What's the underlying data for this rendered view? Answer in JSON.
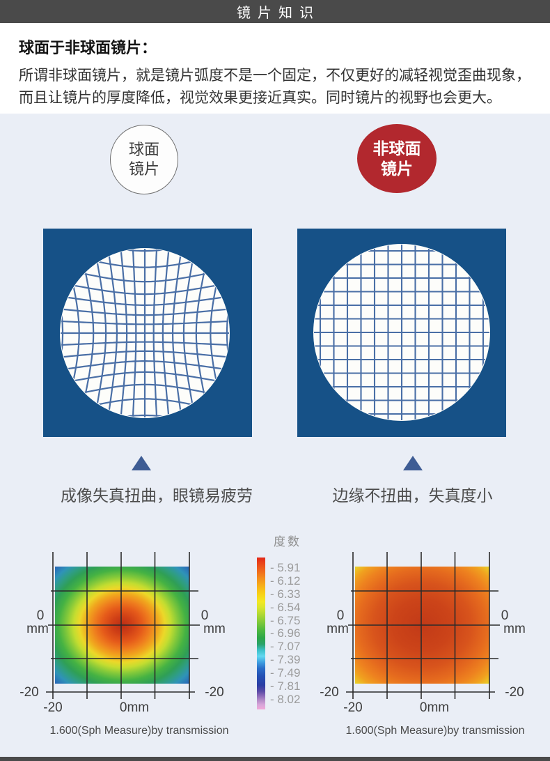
{
  "header": {
    "title": "镜片知识",
    "bg_color": "#4a4a4a",
    "text_color": "#ffffff"
  },
  "intro": {
    "heading": "球面于非球面镜片：",
    "line1": "所谓非球面镜片，就是镜片弧度不是一个固定，不仅更好的减轻视觉歪曲现象，",
    "line2": "而且让镜片的厚度降低，视觉效果更接近真实。同时镜片的视野也会更大。"
  },
  "badges": {
    "spherical": {
      "line1": "球面",
      "line2": "镜片"
    },
    "aspherical": {
      "line1": "非球面",
      "line2": "镜片",
      "bg_color": "#b2282e"
    }
  },
  "demo": {
    "panel_color": "#165187",
    "grid_line_color": "#4a6fa6",
    "left_caption": "成像失真扭曲，眼镜易疲劳",
    "right_caption": "边缘不扭曲，失真度小"
  },
  "plots": {
    "axis": {
      "zero": "0",
      "unit": "mm",
      "neg20": "-20",
      "zero_mm": "0mm"
    },
    "left_caption": "1.600(Sph Measure)by transmission",
    "right_caption": "1.600(Sph Measure)by transmission"
  },
  "legend": {
    "title": "度数",
    "labels": [
      "- 5.91",
      "- 6.12",
      "- 6.33",
      "- 6.54",
      "- 6.75",
      "- 6.96",
      "- 7.07",
      "- 7.39",
      "- 7.49",
      "- 7.81",
      "- 8.02"
    ]
  },
  "chart_data": [
    {
      "type": "heatmap",
      "name": "spherical-lens-power-map",
      "caption": "1.600(Sph Measure)by transmission",
      "x_range_mm": [
        -20,
        20
      ],
      "y_range_mm": [
        -20,
        20
      ],
      "x_tick_labels": [
        "-20",
        "0mm"
      ],
      "y_tick_labels_left": [
        "0",
        "mm",
        "-20"
      ],
      "y_tick_labels_right": [
        "0",
        "mm",
        "-20"
      ],
      "value_unit": "diopter (度数)",
      "value_scale": [
        -5.91,
        -6.12,
        -6.33,
        -6.54,
        -6.75,
        -6.96,
        -7.07,
        -7.39,
        -7.49,
        -7.81,
        -8.02
      ],
      "pattern": "radial: red center ~-5.91 worsening to blue corners ~-7.5",
      "x": [
        -20,
        -10,
        0,
        10,
        20
      ],
      "y": [
        20,
        10,
        0,
        -10,
        -20
      ],
      "values": [
        [
          -7.5,
          -7.0,
          -6.8,
          -7.0,
          -7.5
        ],
        [
          -7.0,
          -6.4,
          -6.1,
          -6.4,
          -7.0
        ],
        [
          -6.8,
          -6.1,
          -5.91,
          -6.1,
          -6.8
        ],
        [
          -7.0,
          -6.4,
          -6.1,
          -6.4,
          -7.0
        ],
        [
          -7.5,
          -7.0,
          -6.8,
          -7.0,
          -7.5
        ]
      ],
      "grid": true,
      "legend_position": "right-of-plot (shared, titled 度数)"
    },
    {
      "type": "heatmap",
      "name": "aspherical-lens-power-map",
      "caption": "1.600(Sph Measure)by transmission",
      "x_range_mm": [
        -20,
        20
      ],
      "y_range_mm": [
        -20,
        20
      ],
      "x_tick_labels": [
        "-20",
        "0mm"
      ],
      "y_tick_labels_left": [
        "0",
        "mm",
        "-20"
      ],
      "y_tick_labels_right": [
        "0",
        "mm",
        "-20"
      ],
      "value_unit": "diopter (度数)",
      "value_scale": [
        -5.91,
        -6.12,
        -6.33,
        -6.54,
        -6.75,
        -6.96,
        -7.07,
        -7.39,
        -7.49,
        -7.81,
        -8.02
      ],
      "pattern": "nearly uniform: red-orange center ~-6.0, green-yellow corners ~-6.8",
      "x": [
        -20,
        -10,
        0,
        10,
        20
      ],
      "y": [
        20,
        10,
        0,
        -10,
        -20
      ],
      "values": [
        [
          -6.8,
          -6.3,
          -6.2,
          -6.3,
          -6.8
        ],
        [
          -6.3,
          -6.05,
          -6.0,
          -6.05,
          -6.3
        ],
        [
          -6.2,
          -6.0,
          -5.95,
          -6.0,
          -6.2
        ],
        [
          -6.3,
          -6.05,
          -6.0,
          -6.05,
          -6.3
        ],
        [
          -6.8,
          -6.3,
          -6.2,
          -6.3,
          -6.8
        ]
      ],
      "grid": true,
      "legend_position": "left-of-plot (shared, titled 度数)"
    }
  ]
}
